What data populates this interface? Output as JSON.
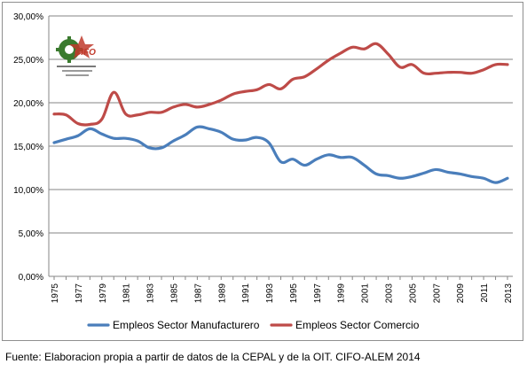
{
  "logo": {
    "text": "CIFO",
    "subtext": "Centro de Investigación y Formación Obrera"
  },
  "source": "Fuente: Elaboracion propia a partir de datos de la CEPAL y de la OIT. CIFO-ALEM 2014",
  "chart_data": {
    "type": "line",
    "title": "",
    "xlabel": "",
    "ylabel": "",
    "ylim": [
      0,
      0.3
    ],
    "y_ticks": [
      0,
      0.05,
      0.1,
      0.15,
      0.2,
      0.25,
      0.3
    ],
    "y_tick_labels": [
      "0,00%",
      "5,00%",
      "10,00%",
      "15,00%",
      "20,00%",
      "25,00%",
      "30,00%"
    ],
    "x_tick_labels": [
      "1975",
      "1977",
      "1979",
      "1981",
      "1983",
      "1985",
      "1987",
      "1989",
      "1991",
      "1993",
      "1995",
      "1997",
      "1999",
      "2001",
      "2003",
      "2005",
      "2007",
      "2009",
      "2011",
      "2013"
    ],
    "grid": "horizontal",
    "legend_position": "bottom",
    "x": [
      1975,
      1976,
      1977,
      1978,
      1979,
      1980,
      1981,
      1982,
      1983,
      1984,
      1985,
      1986,
      1987,
      1988,
      1989,
      1990,
      1991,
      1992,
      1993,
      1994,
      1995,
      1996,
      1997,
      1998,
      1999,
      2000,
      2001,
      2002,
      2003,
      2004,
      2005,
      2006,
      2007,
      2008,
      2009,
      2010,
      2011,
      2012,
      2013
    ],
    "series": [
      {
        "name": "Empleos Sector Manufacturero",
        "color": "#4a7ebb",
        "values": [
          0.154,
          0.158,
          0.162,
          0.17,
          0.164,
          0.159,
          0.159,
          0.156,
          0.148,
          0.148,
          0.156,
          0.163,
          0.172,
          0.17,
          0.166,
          0.158,
          0.157,
          0.16,
          0.154,
          0.132,
          0.135,
          0.128,
          0.135,
          0.14,
          0.137,
          0.137,
          0.128,
          0.118,
          0.116,
          0.113,
          0.115,
          0.119,
          0.123,
          0.12,
          0.118,
          0.115,
          0.113,
          0.108,
          0.113
        ]
      },
      {
        "name": "Empleos Sector Comercio",
        "color": "#be4b48",
        "values": [
          0.187,
          0.186,
          0.176,
          0.175,
          0.181,
          0.212,
          0.187,
          0.186,
          0.189,
          0.189,
          0.195,
          0.198,
          0.195,
          0.198,
          0.203,
          0.21,
          0.213,
          0.215,
          0.221,
          0.216,
          0.227,
          0.23,
          0.239,
          0.249,
          0.257,
          0.264,
          0.262,
          0.268,
          0.256,
          0.241,
          0.244,
          0.234,
          0.234,
          0.235,
          0.235,
          0.234,
          0.238,
          0.244,
          0.244
        ]
      }
    ]
  }
}
